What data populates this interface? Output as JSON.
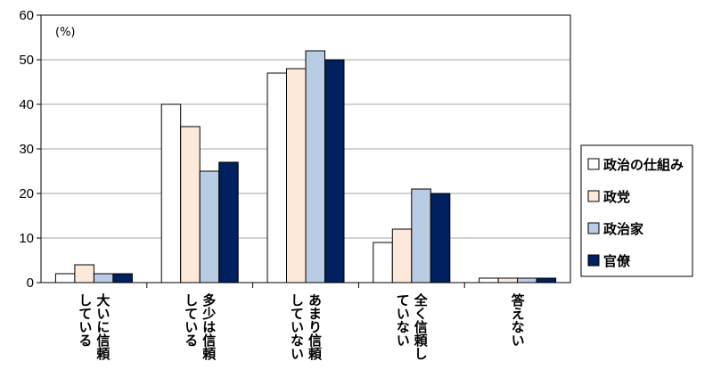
{
  "chart_data": {
    "type": "bar",
    "unit_label": "(%)",
    "categories": [
      [
        "大いに信頼",
        "している"
      ],
      [
        "多少は信頼",
        "している"
      ],
      [
        "あまり信頼",
        "していない"
      ],
      [
        "全く信頼し",
        "ていない"
      ],
      [
        "答えない"
      ]
    ],
    "series": [
      {
        "name": "政治の仕組み",
        "color": "#ffffff",
        "values": [
          2,
          40,
          47,
          9,
          1
        ]
      },
      {
        "name": "政党",
        "color": "#fde9d9",
        "values": [
          4,
          35,
          48,
          12,
          1
        ]
      },
      {
        "name": "政治家",
        "color": "#b8cce4",
        "values": [
          2,
          25,
          52,
          21,
          1
        ]
      },
      {
        "name": "官僚",
        "color": "#002060",
        "values": [
          2,
          27,
          50,
          20,
          1
        ]
      }
    ],
    "ylim": [
      0,
      60
    ],
    "yticks": [
      0,
      10,
      20,
      30,
      40,
      50,
      60
    ],
    "grid": true,
    "legend_position": "right"
  }
}
